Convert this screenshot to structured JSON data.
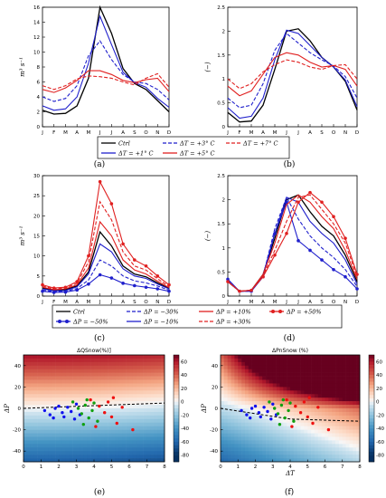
{
  "months": [
    "J",
    "F",
    "M",
    "A",
    "M",
    "J",
    "J",
    "A",
    "S",
    "O",
    "N",
    "D"
  ],
  "captions": [
    "(a)",
    "(b)",
    "(c)",
    "(d)",
    "(e)",
    "(f)"
  ],
  "legend_top": [
    "Ctrl",
    "ΔT = +1° C",
    "ΔT = +3° C",
    "ΔT = +5° C",
    "ΔT = +7° C"
  ],
  "legend_mid": [
    "Ctrl",
    "ΔP = −50%",
    "ΔP = −30%",
    "ΔP = −10%",
    "ΔP = +10%",
    "ΔP = +30%",
    "ΔP = +50%"
  ],
  "chart_data": [
    {
      "id": "a",
      "type": "line",
      "ylabel": "m³ s⁻¹",
      "ylim": [
        0,
        16
      ],
      "yticks": [
        0,
        2,
        4,
        6,
        8,
        10,
        12,
        14,
        16
      ],
      "x": [
        1,
        2,
        3,
        4,
        5,
        6,
        7,
        8,
        9,
        10,
        11,
        12
      ],
      "series": [
        {
          "name": "Ctrl",
          "color": "#000000",
          "dash": "",
          "values": [
            2.2,
            1.7,
            1.8,
            2.8,
            6.5,
            16.0,
            12.5,
            7.8,
            5.8,
            5.0,
            3.5,
            2.0
          ]
        },
        {
          "name": "ΔT = +1° C",
          "color": "#1f1fcc",
          "dash": "",
          "values": [
            2.8,
            2.2,
            2.4,
            4.0,
            8.5,
            14.8,
            11.0,
            7.3,
            5.9,
            5.3,
            3.8,
            2.6
          ]
        },
        {
          "name": "ΔT = +3° C",
          "color": "#1f1fcc",
          "dash": "4,2",
          "values": [
            4.0,
            3.4,
            3.8,
            5.5,
            9.5,
            11.5,
            9.0,
            7.0,
            6.0,
            5.8,
            5.0,
            3.6
          ]
        },
        {
          "name": "ΔT = +5° C",
          "color": "#e02020",
          "dash": "",
          "values": [
            5.0,
            4.6,
            5.2,
            6.2,
            7.5,
            7.5,
            7.0,
            6.2,
            5.9,
            6.3,
            6.5,
            4.7
          ]
        },
        {
          "name": "ΔT = +7° C",
          "color": "#e02020",
          "dash": "4,2",
          "values": [
            5.5,
            5.0,
            5.5,
            6.4,
            6.8,
            6.7,
            6.5,
            6.0,
            5.6,
            6.5,
            7.1,
            5.3
          ]
        }
      ]
    },
    {
      "id": "b",
      "type": "line",
      "ylabel": "(−)",
      "ylim": [
        0,
        2.5
      ],
      "yticks": [
        0.0,
        0.5,
        1.0,
        1.5,
        2.0,
        2.5
      ],
      "x": [
        1,
        2,
        3,
        4,
        5,
        6,
        7,
        8,
        9,
        10,
        11,
        12
      ],
      "series": [
        {
          "name": "Ctrl",
          "color": "#000000",
          "dash": "",
          "values": [
            0.3,
            0.1,
            0.12,
            0.45,
            1.2,
            2.0,
            2.05,
            1.8,
            1.45,
            1.25,
            0.95,
            0.35
          ]
        },
        {
          "name": "ΔT = +1° C",
          "color": "#1f1fcc",
          "dash": "",
          "values": [
            0.4,
            0.18,
            0.22,
            0.6,
            1.4,
            2.02,
            1.95,
            1.7,
            1.45,
            1.25,
            0.98,
            0.42
          ]
        },
        {
          "name": "ΔT = +3° C",
          "color": "#1f1fcc",
          "dash": "4,2",
          "values": [
            0.6,
            0.4,
            0.45,
            0.9,
            1.6,
            1.95,
            1.75,
            1.55,
            1.4,
            1.27,
            1.05,
            0.6
          ]
        },
        {
          "name": "ΔT = +5° C",
          "color": "#e02020",
          "dash": "",
          "values": [
            0.85,
            0.65,
            0.75,
            1.1,
            1.45,
            1.55,
            1.5,
            1.35,
            1.25,
            1.28,
            1.2,
            0.85
          ]
        },
        {
          "name": "ΔT = +7° C",
          "color": "#e02020",
          "dash": "4,2",
          "values": [
            1.0,
            0.8,
            0.9,
            1.15,
            1.3,
            1.4,
            1.35,
            1.25,
            1.2,
            1.28,
            1.3,
            1.0
          ]
        }
      ]
    },
    {
      "id": "c",
      "type": "line",
      "ylabel": "m³ s⁻¹",
      "ylim": [
        0,
        30
      ],
      "yticks": [
        0,
        5,
        10,
        15,
        20,
        25,
        30
      ],
      "x": [
        1,
        2,
        3,
        4,
        5,
        6,
        7,
        8,
        9,
        10,
        11,
        12
      ],
      "series": [
        {
          "name": "Ctrl",
          "color": "#000000",
          "dash": "",
          "marker": false,
          "values": [
            2.0,
            1.5,
            1.6,
            2.5,
            6.0,
            16.0,
            12.5,
            7.5,
            5.5,
            4.8,
            3.3,
            1.9
          ]
        },
        {
          "name": "ΔP = −50%",
          "color": "#1f1fcc",
          "dash": "",
          "marker": true,
          "values": [
            1.2,
            0.9,
            1.0,
            1.5,
            3.0,
            5.3,
            4.5,
            3.2,
            2.6,
            2.2,
            1.8,
            1.2
          ]
        },
        {
          "name": "ΔP = −30%",
          "color": "#1f1fcc",
          "dash": "4,2",
          "marker": false,
          "values": [
            1.5,
            1.1,
            1.2,
            1.9,
            4.0,
            9.0,
            7.5,
            5.0,
            3.8,
            3.3,
            2.5,
            1.5
          ]
        },
        {
          "name": "ΔP = −10%",
          "color": "#1f1fcc",
          "dash": "",
          "marker": false,
          "values": [
            1.8,
            1.3,
            1.4,
            2.3,
            5.5,
            13.0,
            11.0,
            6.8,
            5.0,
            4.4,
            3.0,
            1.8
          ]
        },
        {
          "name": "ΔP = +10%",
          "color": "#e02020",
          "dash": "",
          "marker": false,
          "values": [
            2.2,
            1.6,
            1.8,
            2.8,
            7.0,
            18.5,
            15.0,
            9.0,
            6.5,
            5.5,
            3.7,
            2.1
          ]
        },
        {
          "name": "ΔP = +30%",
          "color": "#e02020",
          "dash": "4,2",
          "marker": false,
          "values": [
            2.5,
            1.8,
            2.0,
            3.2,
            8.5,
            23.5,
            19.0,
            11.0,
            7.5,
            6.5,
            4.3,
            2.4
          ]
        },
        {
          "name": "ΔP = +50%",
          "color": "#e02020",
          "dash": "",
          "marker": true,
          "values": [
            2.8,
            2.0,
            2.2,
            3.6,
            10.0,
            28.5,
            23.0,
            13.0,
            9.0,
            7.5,
            5.0,
            2.8
          ]
        }
      ]
    },
    {
      "id": "d",
      "type": "line",
      "ylabel": "(−)",
      "ylim": [
        0,
        2.5
      ],
      "yticks": [
        0.0,
        0.5,
        1.0,
        1.5,
        2.0,
        2.5
      ],
      "x": [
        1,
        2,
        3,
        4,
        5,
        6,
        7,
        8,
        9,
        10,
        11,
        12
      ],
      "series": [
        {
          "name": "Ctrl",
          "color": "#000000",
          "dash": "",
          "marker": false,
          "values": [
            0.3,
            0.1,
            0.12,
            0.45,
            1.2,
            2.0,
            2.1,
            1.75,
            1.45,
            1.25,
            0.85,
            0.3
          ]
        },
        {
          "name": "ΔP = −50%",
          "color": "#1f1fcc",
          "dash": "",
          "marker": true,
          "values": [
            0.35,
            0.1,
            0.1,
            0.4,
            1.3,
            1.95,
            1.15,
            0.95,
            0.75,
            0.55,
            0.4,
            0.15
          ]
        },
        {
          "name": "ΔP = −30%",
          "color": "#1f1fcc",
          "dash": "4,2",
          "marker": false,
          "values": [
            0.32,
            0.1,
            0.1,
            0.42,
            1.4,
            2.05,
            1.6,
            1.25,
            1.0,
            0.8,
            0.55,
            0.2
          ]
        },
        {
          "name": "ΔP = −10%",
          "color": "#1f1fcc",
          "dash": "",
          "marker": false,
          "values": [
            0.3,
            0.1,
            0.11,
            0.44,
            1.3,
            2.05,
            1.95,
            1.55,
            1.3,
            1.1,
            0.75,
            0.25
          ]
        },
        {
          "name": "ΔP = +10%",
          "color": "#e02020",
          "dash": "",
          "marker": false,
          "values": [
            0.3,
            0.1,
            0.12,
            0.45,
            1.1,
            1.9,
            2.1,
            1.95,
            1.65,
            1.4,
            0.95,
            0.35
          ]
        },
        {
          "name": "ΔP = +30%",
          "color": "#e02020",
          "dash": "4,2",
          "marker": false,
          "values": [
            0.3,
            0.1,
            0.12,
            0.42,
            0.95,
            1.55,
            2.05,
            2.1,
            1.8,
            1.5,
            1.1,
            0.4
          ]
        },
        {
          "name": "ΔP = +50%",
          "color": "#e02020",
          "dash": "",
          "marker": true,
          "values": [
            0.3,
            0.1,
            0.12,
            0.4,
            0.85,
            1.3,
            1.95,
            2.15,
            1.95,
            1.65,
            1.2,
            0.45
          ]
        }
      ]
    },
    {
      "id": "e",
      "type": "heatmap",
      "title": "ΔQSnow(%)]",
      "xlabel": "",
      "ylabel": "ΔP",
      "xlim": [
        0,
        8
      ],
      "ylim": [
        -50,
        50
      ],
      "xticks": [
        0,
        1,
        2,
        3,
        4,
        5,
        6,
        7,
        8
      ],
      "yticks": [
        -40,
        -20,
        0,
        20,
        40
      ],
      "colorbar": [
        -80,
        -60,
        -40,
        -20,
        0,
        20,
        40,
        60
      ],
      "zero_line": [
        [
          0,
          0
        ],
        [
          8,
          5
        ]
      ],
      "points": [
        {
          "x": 1.2,
          "y": -2,
          "c": "blue"
        },
        {
          "x": 1.5,
          "y": -6,
          "c": "blue"
        },
        {
          "x": 1.8,
          "y": 0,
          "c": "blue"
        },
        {
          "x": 2.0,
          "y": 2,
          "c": "blue"
        },
        {
          "x": 2.2,
          "y": -4,
          "c": "blue"
        },
        {
          "x": 2.3,
          "y": -8,
          "c": "blue"
        },
        {
          "x": 2.5,
          "y": 1,
          "c": "blue"
        },
        {
          "x": 2.7,
          "y": -3,
          "c": "blue"
        },
        {
          "x": 2.9,
          "y": -10,
          "c": "blue"
        },
        {
          "x": 3.0,
          "y": 4,
          "c": "blue"
        },
        {
          "x": 3.2,
          "y": -6,
          "c": "blue"
        },
        {
          "x": 1.7,
          "y": -9,
          "c": "blue"
        },
        {
          "x": 2.8,
          "y": 6,
          "c": "green"
        },
        {
          "x": 3.1,
          "y": 0,
          "c": "green"
        },
        {
          "x": 3.3,
          "y": -5,
          "c": "green"
        },
        {
          "x": 3.5,
          "y": 3,
          "c": "green"
        },
        {
          "x": 3.7,
          "y": -9,
          "c": "green"
        },
        {
          "x": 3.9,
          "y": -2,
          "c": "green"
        },
        {
          "x": 4.0,
          "y": 5,
          "c": "green"
        },
        {
          "x": 4.2,
          "y": -12,
          "c": "green"
        },
        {
          "x": 3.4,
          "y": -15,
          "c": "green"
        },
        {
          "x": 3.6,
          "y": 8,
          "c": "green"
        },
        {
          "x": 3.8,
          "y": 8,
          "c": "red"
        },
        {
          "x": 4.3,
          "y": 2,
          "c": "red"
        },
        {
          "x": 4.6,
          "y": -4,
          "c": "red"
        },
        {
          "x": 4.8,
          "y": 6,
          "c": "red"
        },
        {
          "x": 5.0,
          "y": -8,
          "c": "red"
        },
        {
          "x": 5.3,
          "y": -14,
          "c": "red"
        },
        {
          "x": 5.6,
          "y": 1,
          "c": "red"
        },
        {
          "x": 6.2,
          "y": -20,
          "c": "red"
        },
        {
          "x": 4.1,
          "y": -17,
          "c": "red"
        },
        {
          "x": 5.1,
          "y": 10,
          "c": "red"
        }
      ]
    },
    {
      "id": "f",
      "type": "heatmap",
      "title": "ΔPnSnow (%)",
      "xlabel": "ΔT",
      "ylabel": "ΔP",
      "xlim": [
        0,
        8
      ],
      "ylim": [
        -50,
        50
      ],
      "xticks": [
        0,
        1,
        2,
        3,
        4,
        5,
        6,
        7,
        8
      ],
      "yticks": [
        -40,
        -20,
        0,
        20,
        40
      ],
      "colorbar": [
        -80,
        -60,
        -40,
        -20,
        0,
        20,
        40,
        60
      ],
      "zero_line": [
        [
          0,
          0
        ],
        [
          2,
          -5
        ],
        [
          4,
          -10
        ],
        [
          8,
          -12
        ]
      ],
      "points": [
        {
          "x": 1.2,
          "y": -2,
          "c": "blue"
        },
        {
          "x": 1.5,
          "y": -6,
          "c": "blue"
        },
        {
          "x": 1.8,
          "y": 0,
          "c": "blue"
        },
        {
          "x": 2.0,
          "y": 2,
          "c": "blue"
        },
        {
          "x": 2.2,
          "y": -4,
          "c": "blue"
        },
        {
          "x": 2.3,
          "y": -8,
          "c": "blue"
        },
        {
          "x": 2.5,
          "y": 1,
          "c": "blue"
        },
        {
          "x": 2.7,
          "y": -3,
          "c": "blue"
        },
        {
          "x": 2.9,
          "y": -10,
          "c": "blue"
        },
        {
          "x": 3.0,
          "y": 4,
          "c": "blue"
        },
        {
          "x": 3.2,
          "y": -6,
          "c": "blue"
        },
        {
          "x": 1.7,
          "y": -9,
          "c": "blue"
        },
        {
          "x": 2.8,
          "y": 6,
          "c": "green"
        },
        {
          "x": 3.1,
          "y": 0,
          "c": "green"
        },
        {
          "x": 3.3,
          "y": -5,
          "c": "green"
        },
        {
          "x": 3.5,
          "y": 3,
          "c": "green"
        },
        {
          "x": 3.7,
          "y": -9,
          "c": "green"
        },
        {
          "x": 3.9,
          "y": -2,
          "c": "green"
        },
        {
          "x": 4.0,
          "y": 5,
          "c": "green"
        },
        {
          "x": 4.2,
          "y": -12,
          "c": "green"
        },
        {
          "x": 3.4,
          "y": -15,
          "c": "green"
        },
        {
          "x": 3.6,
          "y": 8,
          "c": "green"
        },
        {
          "x": 3.8,
          "y": 8,
          "c": "red"
        },
        {
          "x": 4.3,
          "y": 2,
          "c": "red"
        },
        {
          "x": 4.6,
          "y": -4,
          "c": "red"
        },
        {
          "x": 4.8,
          "y": 6,
          "c": "red"
        },
        {
          "x": 5.0,
          "y": -8,
          "c": "red"
        },
        {
          "x": 5.3,
          "y": -14,
          "c": "red"
        },
        {
          "x": 5.6,
          "y": 1,
          "c": "red"
        },
        {
          "x": 6.2,
          "y": -20,
          "c": "red"
        },
        {
          "x": 4.1,
          "y": -17,
          "c": "red"
        },
        {
          "x": 5.1,
          "y": 10,
          "c": "red"
        }
      ]
    }
  ]
}
